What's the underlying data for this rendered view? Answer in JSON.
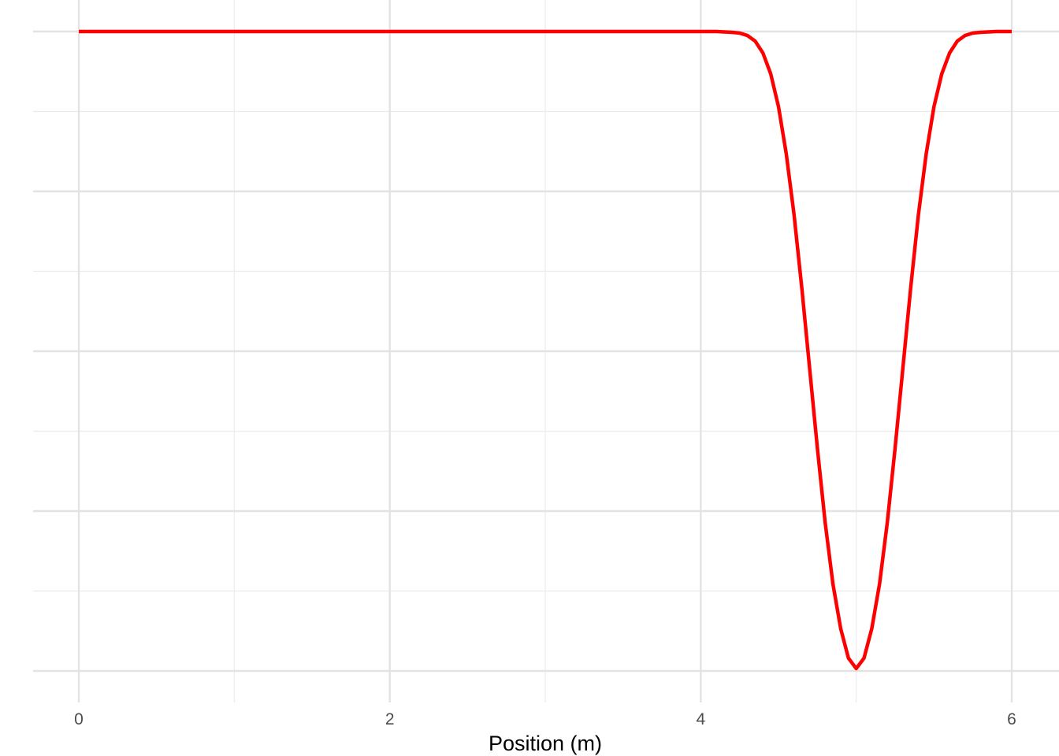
{
  "chart_data": {
    "type": "line",
    "title": "",
    "xlabel": "Position (m)",
    "ylabel": "",
    "xlim": [
      -0.3,
      6.3
    ],
    "ylim": [
      -0.02,
      0.82
    ],
    "x_ticks": [
      0,
      2,
      4,
      6
    ],
    "x_tick_labels": [
      "0",
      "2",
      "4",
      "6"
    ],
    "x_minor_gridlines": [
      1,
      3,
      5
    ],
    "y_gridlines": [
      0.0,
      0.2,
      0.4,
      0.6,
      0.8
    ],
    "y_minor_gridlines": [
      0.1,
      0.3,
      0.5,
      0.7
    ],
    "y_tick_labels_visible": false,
    "grid": true,
    "legend": "none",
    "series": [
      {
        "color": "#ff0000",
        "x": [
          0,
          0.5,
          1,
          1.5,
          2,
          2.5,
          3,
          3.5,
          4,
          4.1,
          4.2,
          4.25,
          4.3,
          4.35,
          4.4,
          4.45,
          4.5,
          4.55,
          4.6,
          4.65,
          4.7,
          4.75,
          4.8,
          4.85,
          4.9,
          4.95,
          5,
          5.05,
          5.1,
          5.15,
          5.2,
          5.25,
          5.3,
          5.35,
          5.4,
          5.45,
          5.5,
          5.55,
          5.6,
          5.65,
          5.7,
          5.75,
          5.8,
          5.9,
          6
        ],
        "y": [
          0.8,
          0.8,
          0.8,
          0.8,
          0.8,
          0.8,
          0.8,
          0.8,
          0.8,
          0.8,
          0.799,
          0.798,
          0.795,
          0.788,
          0.773,
          0.747,
          0.706,
          0.647,
          0.571,
          0.479,
          0.379,
          0.279,
          0.186,
          0.109,
          0.053,
          0.016,
          0.003,
          0.016,
          0.053,
          0.109,
          0.186,
          0.279,
          0.379,
          0.479,
          0.571,
          0.647,
          0.706,
          0.747,
          0.773,
          0.788,
          0.795,
          0.798,
          0.799,
          0.8,
          0.8
        ]
      }
    ]
  }
}
